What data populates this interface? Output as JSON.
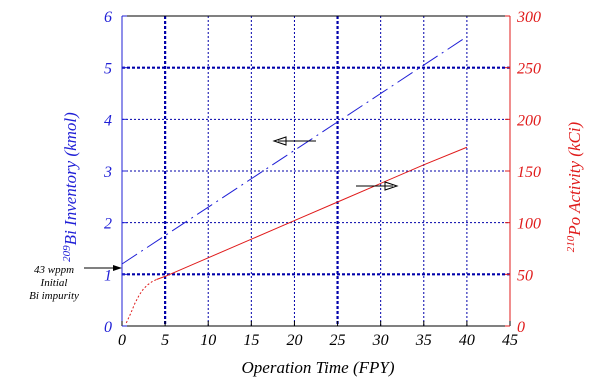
{
  "chart_data": {
    "type": "line",
    "xlabel": "Operation Time (FPY)",
    "ylabel_left_sup": "209",
    "ylabel_left_main": "Bi Inventory (kmol)",
    "ylabel_right_sup": "210",
    "ylabel_right_main": "Po Activity (kCi)",
    "xlim": [
      0,
      45
    ],
    "ylim_left": [
      0,
      6
    ],
    "ylim_right": [
      0,
      300
    ],
    "x_ticks": [
      "0",
      "5",
      "10",
      "15",
      "20",
      "25",
      "30",
      "35",
      "40",
      "45"
    ],
    "y_left_ticks": [
      "0",
      "1",
      "2",
      "3",
      "4",
      "5",
      "6"
    ],
    "y_right_ticks": [
      "0",
      "50",
      "100",
      "150",
      "200",
      "250",
      "300"
    ],
    "grid": true,
    "colors": {
      "left_axis": "#1f1fd6",
      "right_axis": "#e01b1b",
      "grid": "#0000aa"
    },
    "series": [
      {
        "axis": "left",
        "style": "dash-dot",
        "x": [
          0,
          5,
          10,
          15,
          20,
          25,
          30,
          35,
          40
        ],
        "y": [
          1.2,
          1.75,
          2.3,
          2.85,
          3.4,
          3.95,
          4.5,
          5.05,
          5.6
        ]
      },
      {
        "axis": "right",
        "style": "dotted-then-solid",
        "x": [
          0.5,
          1,
          1.5,
          2,
          2.5,
          3,
          3.5,
          4,
          5,
          10,
          15,
          20,
          25,
          30,
          35,
          40
        ],
        "y": [
          3,
          12,
          22,
          30,
          36,
          40,
          43,
          45,
          48,
          66,
          84,
          102,
          120,
          138,
          156,
          173
        ]
      }
    ],
    "annotations": [
      "43 wppm",
      "Initial",
      "Bi impurity"
    ]
  }
}
